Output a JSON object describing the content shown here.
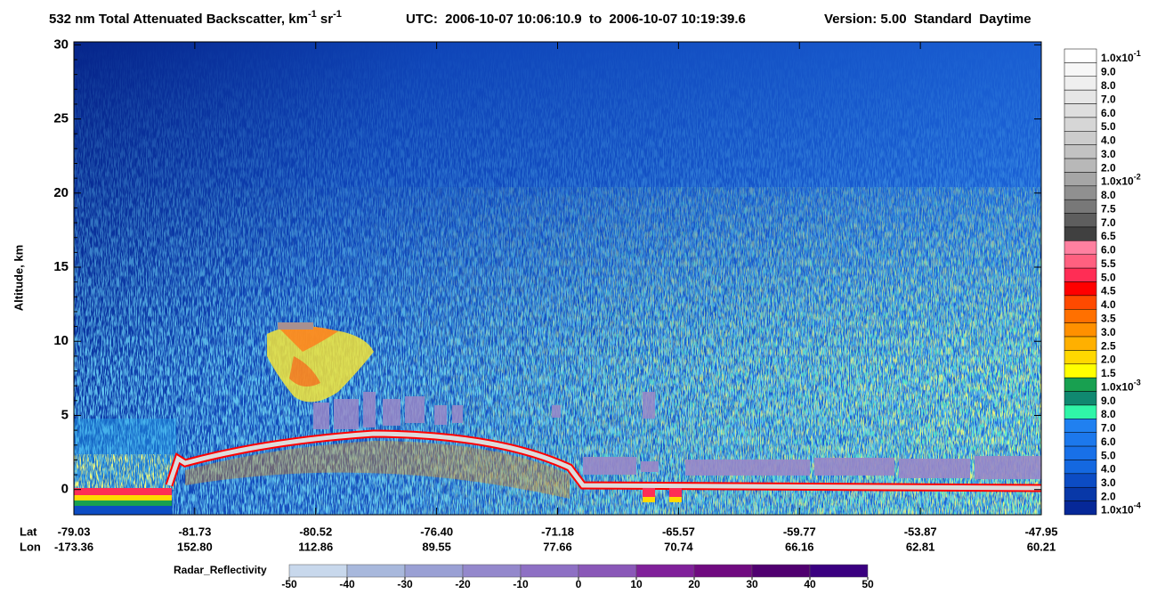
{
  "chart_data": {
    "type": "curtain",
    "title": {
      "main": "532 nm Total Attenuated Backscatter, km",
      "exp1": "-1",
      "mid": " sr",
      "exp2": "-1"
    },
    "subtitle": "UTC:  2006-10-07 10:06:10.9  to  2006-10-07 10:19:39.6",
    "version": "Version: 5.00  Standard  Daytime",
    "y_label": "Altitude, km",
    "ylim": [
      -1.7,
      30.2
    ],
    "yticks": [
      0,
      5,
      10,
      15,
      20,
      25,
      30
    ],
    "x_rows": [
      {
        "name": "Lat",
        "labels": [
          "-79.03",
          "-81.73",
          "-80.52",
          "-76.40",
          "-71.18",
          "-65.57",
          "-59.77",
          "-53.87",
          "-47.95"
        ]
      },
      {
        "name": "Lon",
        "labels": [
          "-173.36",
          "152.80",
          "112.86",
          "89.55",
          "77.66",
          "70.74",
          "66.16",
          "62.81",
          "60.21"
        ]
      }
    ],
    "colorbar": {
      "labels": [
        {
          "text": "1.0x10",
          "sup": "-1"
        },
        "9.0",
        "8.0",
        "7.0",
        "6.0",
        "5.0",
        "4.0",
        "3.0",
        "2.0",
        {
          "text": "1.0x10",
          "sup": "-2"
        },
        "8.0",
        "7.5",
        "7.0",
        "6.5",
        "6.0",
        "5.5",
        "5.0",
        "4.5",
        "4.0",
        "3.5",
        "3.0",
        "2.5",
        "2.0",
        "1.5",
        {
          "text": "1.0x10",
          "sup": "-3"
        },
        "9.0",
        "8.0",
        "7.0",
        "6.0",
        "5.0",
        "4.0",
        "3.0",
        "2.0",
        {
          "text": "1.0x10",
          "sup": "-4"
        }
      ],
      "colors": [
        "#ffffff",
        "#f7f7f7",
        "#efefef",
        "#e6e6e6",
        "#dedede",
        "#d6d6d6",
        "#cccccc",
        "#c2c2c2",
        "#b8b8b8",
        "#a6a6a6",
        "#909090",
        "#787878",
        "#5e5e5e",
        "#404040",
        "#ff80a0",
        "#ff6080",
        "#ff2d55",
        "#ff0000",
        "#ff4a00",
        "#ff7000",
        "#ff9000",
        "#ffb000",
        "#ffd800",
        "#ffff00",
        "#18a050",
        "#108870",
        "#30f5a8",
        "#2080f0",
        "#1c78ec",
        "#1870e8",
        "#1468e0",
        "#0c4cc4",
        "#0838a8",
        "#062898"
      ]
    },
    "radar_colorbar": {
      "title": "Radar_Reflectivity",
      "ticks": [
        -50,
        -40,
        -30,
        -20,
        -10,
        0,
        10,
        20,
        30,
        40,
        50
      ],
      "colors": [
        "#c8d8ec",
        "#a8b8dc",
        "#9aa0d4",
        "#9488cc",
        "#8e70c4",
        "#8a58b8",
        "#80209a",
        "#700a80",
        "#500070",
        "#3a0080"
      ]
    }
  }
}
